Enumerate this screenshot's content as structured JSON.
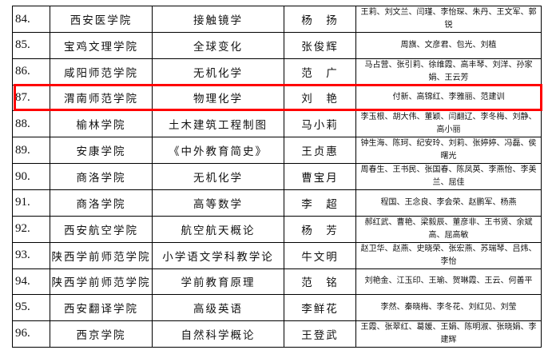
{
  "highlight_color": "#ff0000",
  "highlighted_row": "87.",
  "rows": [
    {
      "no": "84.",
      "school": "西安医学院",
      "course": "接触镜学",
      "leader": "杨　扬",
      "members": "王莉、刘文兰、闫瑾、李怡琛、朱丹、王文军、郭锐"
    },
    {
      "no": "85.",
      "school": "宝鸡文理学院",
      "course": "全球变化",
      "leader": "张俊辉",
      "members": "周旗、文彦君、包光、刘植"
    },
    {
      "no": "86.",
      "school": "咸阳师范学院",
      "course": "无机化学",
      "leader": "范　广",
      "members": "马占营、张引莉、徐维霞、高丰琴、刘洋、孙家娟、王云芳"
    },
    {
      "no": "87.",
      "school": "渭南师范学院",
      "course": "物理化学",
      "leader": "刘　艳",
      "members": "付新、高锦红、李雅丽、范建训"
    },
    {
      "no": "88.",
      "school": "榆林学院",
      "course": "土木建筑工程制图",
      "leader": "马小莉",
      "members": "李玉根、胡大伟、董颖、闫翻辽、李冬梅、刘静、高小丽"
    },
    {
      "no": "89.",
      "school": "安康学院",
      "course": "《中外教育简史》",
      "leader": "王贞惠",
      "members": "钟生海、陈珂、纪安玲、刘莉、张婷婷、冯磊、侯曙光"
    },
    {
      "no": "90.",
      "school": "商洛学院",
      "course": "无机化学",
      "leader": "曹宝月",
      "members": "周春生、王书民、张国春、陈凤英、李燕怡、李美兰、屈佳"
    },
    {
      "no": "91.",
      "school": "商洛学院",
      "course": "高等数学",
      "leader": "李　超",
      "members": "程国、王念良、李会荣、赵鹏军、杨燕"
    },
    {
      "no": "92.",
      "school": "西安航空学院",
      "course": "航空航天概论",
      "leader": "杨　芳",
      "members": "郝红武、曹艳、梁毅辰、董彦非、王书贤、余斌高、屈高敏"
    },
    {
      "no": "93.",
      "school": "陕西学前师范学院",
      "course": "小学语文学科教学论",
      "leader": "牛文明",
      "members": "赵卫华、赵燕、史晓荣、张宏燕、苏瑞琴、吕炜、李怡"
    },
    {
      "no": "94.",
      "school": "陕西学前师范学院",
      "course": "学前教育原理",
      "leader": "范　铭",
      "members": "刘艳金、江玉印、王瑜、贺琳霞、王云、何善平"
    },
    {
      "no": "95.",
      "school": "西安翻译学院",
      "course": "高级英语",
      "leader": "李鲜花",
      "members": "李然、秦晓梅、李冬花、刘红见、刘莹"
    },
    {
      "no": "96.",
      "school": "西京学院",
      "course": "自然科学概论",
      "leader": "王登武",
      "members": "王霞、张翠红、葛媛、王娟、陈明淑、张晓娟、李建辉"
    }
  ]
}
